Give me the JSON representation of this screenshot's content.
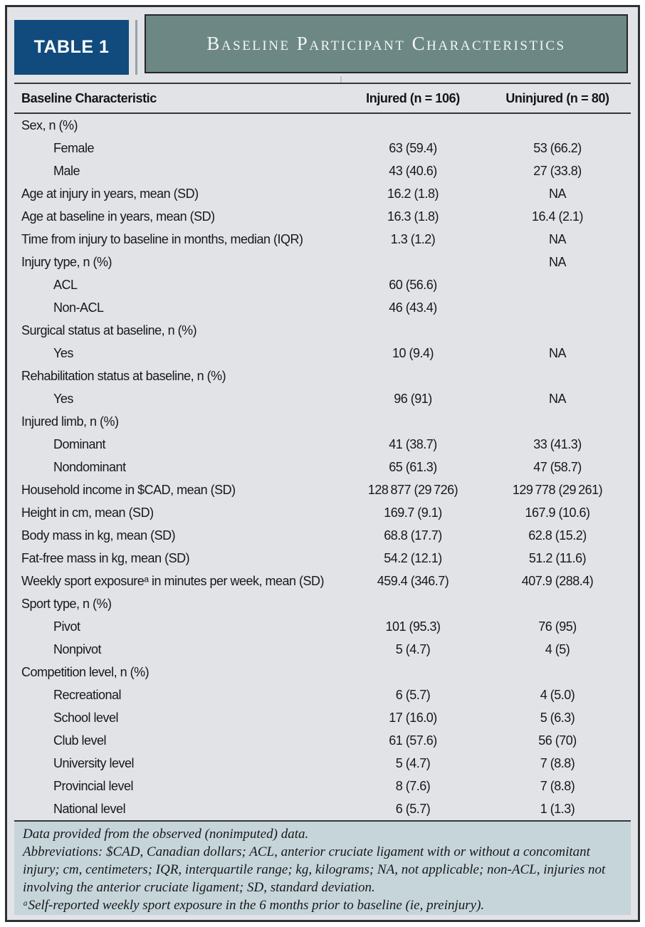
{
  "header": {
    "badge": "TABLE 1",
    "title": "Baseline Participant Characteristics"
  },
  "table": {
    "columns": [
      "Baseline Characteristic",
      "Injured (n = 106)",
      "Uninjured (n = 80)"
    ],
    "rows": [
      {
        "label": "Sex, n (%)",
        "indent": 0,
        "injured": "",
        "uninjured": ""
      },
      {
        "label": "Female",
        "indent": 1,
        "injured": "63 (59.4)",
        "uninjured": "53 (66.2)"
      },
      {
        "label": "Male",
        "indent": 1,
        "injured": "43 (40.6)",
        "uninjured": "27 (33.8)"
      },
      {
        "label": "Age at injury in years, mean (SD)",
        "indent": 0,
        "injured": "16.2 (1.8)",
        "uninjured": "NA"
      },
      {
        "label": "Age at baseline in years, mean (SD)",
        "indent": 0,
        "injured": "16.3 (1.8)",
        "uninjured": "16.4 (2.1)"
      },
      {
        "label": "Time from injury to baseline in months, median (IQR)",
        "indent": 0,
        "injured": "1.3 (1.2)",
        "uninjured": "NA"
      },
      {
        "label": "Injury type, n (%)",
        "indent": 0,
        "injured": "",
        "uninjured": "NA"
      },
      {
        "label": "ACL",
        "indent": 1,
        "injured": "60 (56.6)",
        "uninjured": ""
      },
      {
        "label": "Non-ACL",
        "indent": 1,
        "injured": "46 (43.4)",
        "uninjured": ""
      },
      {
        "label": "Surgical status at baseline, n (%)",
        "indent": 0,
        "injured": "",
        "uninjured": ""
      },
      {
        "label": "Yes",
        "indent": 1,
        "injured": "10 (9.4)",
        "uninjured": "NA"
      },
      {
        "label": "Rehabilitation status at baseline, n (%)",
        "indent": 0,
        "injured": "",
        "uninjured": ""
      },
      {
        "label": "Yes",
        "indent": 1,
        "injured": "96 (91)",
        "uninjured": "NA"
      },
      {
        "label": "Injured limb, n (%)",
        "indent": 0,
        "injured": "",
        "uninjured": ""
      },
      {
        "label": "Dominant",
        "indent": 1,
        "injured": "41 (38.7)",
        "uninjured": "33 (41.3)"
      },
      {
        "label": "Nondominant",
        "indent": 1,
        "injured": "65 (61.3)",
        "uninjured": "47 (58.7)"
      },
      {
        "label": "Household income in $CAD, mean (SD)",
        "indent": 0,
        "injured": "128 877 (29 726)",
        "uninjured": "129 778 (29 261)"
      },
      {
        "label": "Height in cm, mean (SD)",
        "indent": 0,
        "injured": "169.7 (9.1)",
        "uninjured": "167.9 (10.6)"
      },
      {
        "label": "Body mass in kg, mean (SD)",
        "indent": 0,
        "injured": "68.8 (17.7)",
        "uninjured": "62.8 (15.2)"
      },
      {
        "label": "Fat-free mass in kg, mean (SD)",
        "indent": 0,
        "injured": "54.2 (12.1)",
        "uninjured": "51.2 (11.6)"
      },
      {
        "label": "Weekly sport exposureᵃ in minutes per week, mean (SD)",
        "indent": 0,
        "injured": "459.4 (346.7)",
        "uninjured": "407.9 (288.4)"
      },
      {
        "label": "Sport type, n (%)",
        "indent": 0,
        "injured": "",
        "uninjured": ""
      },
      {
        "label": "Pivot",
        "indent": 1,
        "injured": "101 (95.3)",
        "uninjured": "76 (95)"
      },
      {
        "label": "Nonpivot",
        "indent": 1,
        "injured": "5 (4.7)",
        "uninjured": "4 (5)"
      },
      {
        "label": "Competition level, n (%)",
        "indent": 0,
        "injured": "",
        "uninjured": ""
      },
      {
        "label": "Recreational",
        "indent": 1,
        "injured": "6 (5.7)",
        "uninjured": "4 (5.0)"
      },
      {
        "label": "School level",
        "indent": 1,
        "injured": "17 (16.0)",
        "uninjured": "5 (6.3)"
      },
      {
        "label": "Club level",
        "indent": 1,
        "injured": "61 (57.6)",
        "uninjured": "56 (70)"
      },
      {
        "label": "University level",
        "indent": 1,
        "injured": "5 (4.7)",
        "uninjured": "7 (8.8)"
      },
      {
        "label": "Provincial level",
        "indent": 1,
        "injured": "8 (7.6)",
        "uninjured": "7 (8.8)"
      },
      {
        "label": "National level",
        "indent": 1,
        "injured": "6 (5.7)",
        "uninjured": "1 (1.3)"
      }
    ]
  },
  "footnotes": [
    "Data provided from the observed (nonimputed) data.",
    "Abbreviations: $CAD, Canadian dollars; ACL, anterior cruciate ligament with or without a concomitant injury; cm, centimeters; IQR, interquartile range; kg, kilograms; NA, not applicable; non-ACL, injuries not involving the anterior cruciate ligament; SD, standard deviation.",
    "ᵃSelf-reported weekly sport exposure in the 6 months prior to baseline (ie, preinjury)."
  ],
  "colors": {
    "badge-blue": "#114b7d",
    "title-green": "#6d8884",
    "footer-bg": "#c6d5da",
    "page-bg": "#e1e3e6"
  }
}
